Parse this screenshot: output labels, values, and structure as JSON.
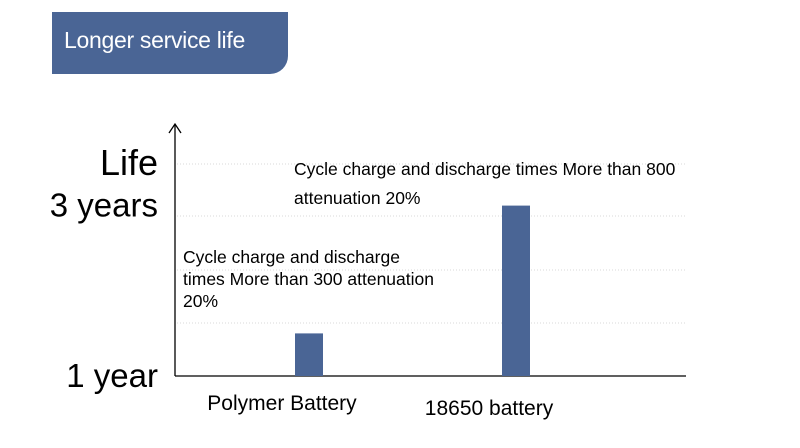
{
  "header": {
    "title": "Longer service life"
  },
  "chart_data": {
    "type": "bar",
    "title": "Longer service life",
    "ylabel": "Life",
    "xlabel": "",
    "categories": [
      "Polymer Battery",
      "18650 battery"
    ],
    "values": [
      1.5,
      3.0
    ],
    "ylim": [
      1.0,
      3.5
    ],
    "yticks": [
      {
        "label": "1 year",
        "value": 1.0
      },
      {
        "label": "3 years",
        "value": 3.0
      }
    ],
    "bar_color": "#4a6595",
    "grid": true,
    "annotations": [
      {
        "category": "Polymer Battery",
        "lines": [
          "Cycle charge and discharge",
          "times  More than 300 attenuation",
          "20%"
        ]
      },
      {
        "category": "18650 battery",
        "lines": [
          "Cycle charge and discharge times  More than 800",
          "attenuation 20%"
        ]
      }
    ]
  }
}
